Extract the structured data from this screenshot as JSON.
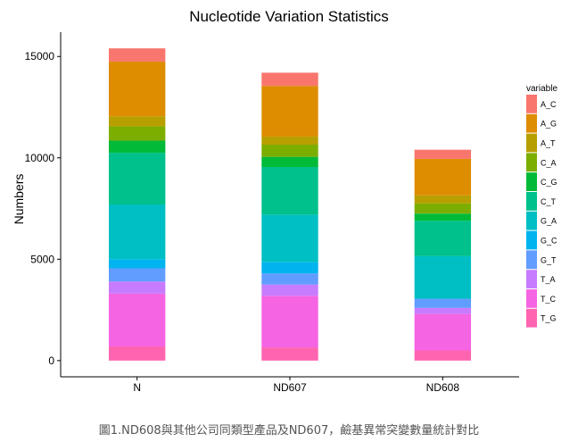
{
  "chart_data": {
    "type": "bar",
    "stacked": true,
    "title": "Nucleotide Variation Statistics",
    "xlabel": "",
    "ylabel": "Numbers",
    "categories": [
      "N",
      "ND607",
      "ND608"
    ],
    "ylim": [
      -800,
      16200
    ],
    "yticks": [
      0,
      5000,
      10000,
      15000
    ],
    "legend_title": "variable",
    "legend_position": "right",
    "grid": false,
    "series": [
      {
        "name": "A_C",
        "color": "#F8766D",
        "values": [
          650,
          650,
          450
        ]
      },
      {
        "name": "A_G",
        "color": "#DE8C00",
        "values": [
          2700,
          2500,
          1800
        ]
      },
      {
        "name": "A_T",
        "color": "#B79F00",
        "values": [
          500,
          400,
          400
        ]
      },
      {
        "name": "C_A",
        "color": "#7CAE00",
        "values": [
          700,
          600,
          500
        ]
      },
      {
        "name": "C_G",
        "color": "#00BA38",
        "values": [
          600,
          500,
          350
        ]
      },
      {
        "name": "C_T",
        "color": "#00C08B",
        "values": [
          2550,
          2350,
          1750
        ]
      },
      {
        "name": "G_A",
        "color": "#00BFC4",
        "values": [
          2700,
          2350,
          2100
        ]
      },
      {
        "name": "G_C",
        "color": "#00B4F0",
        "values": [
          450,
          550,
          0
        ]
      },
      {
        "name": "G_T",
        "color": "#619CFF",
        "values": [
          650,
          550,
          450
        ]
      },
      {
        "name": "T_A",
        "color": "#C77CFF",
        "values": [
          600,
          550,
          300
        ]
      },
      {
        "name": "T_C",
        "color": "#F564E3",
        "values": [
          2600,
          2550,
          1800
        ]
      },
      {
        "name": "T_G",
        "color": "#FF64B0",
        "values": [
          700,
          650,
          500
        ]
      }
    ]
  },
  "caption": "圖1.ND608與其他公司同類型產品及ND607，鹼基異常突變數量統計對比"
}
